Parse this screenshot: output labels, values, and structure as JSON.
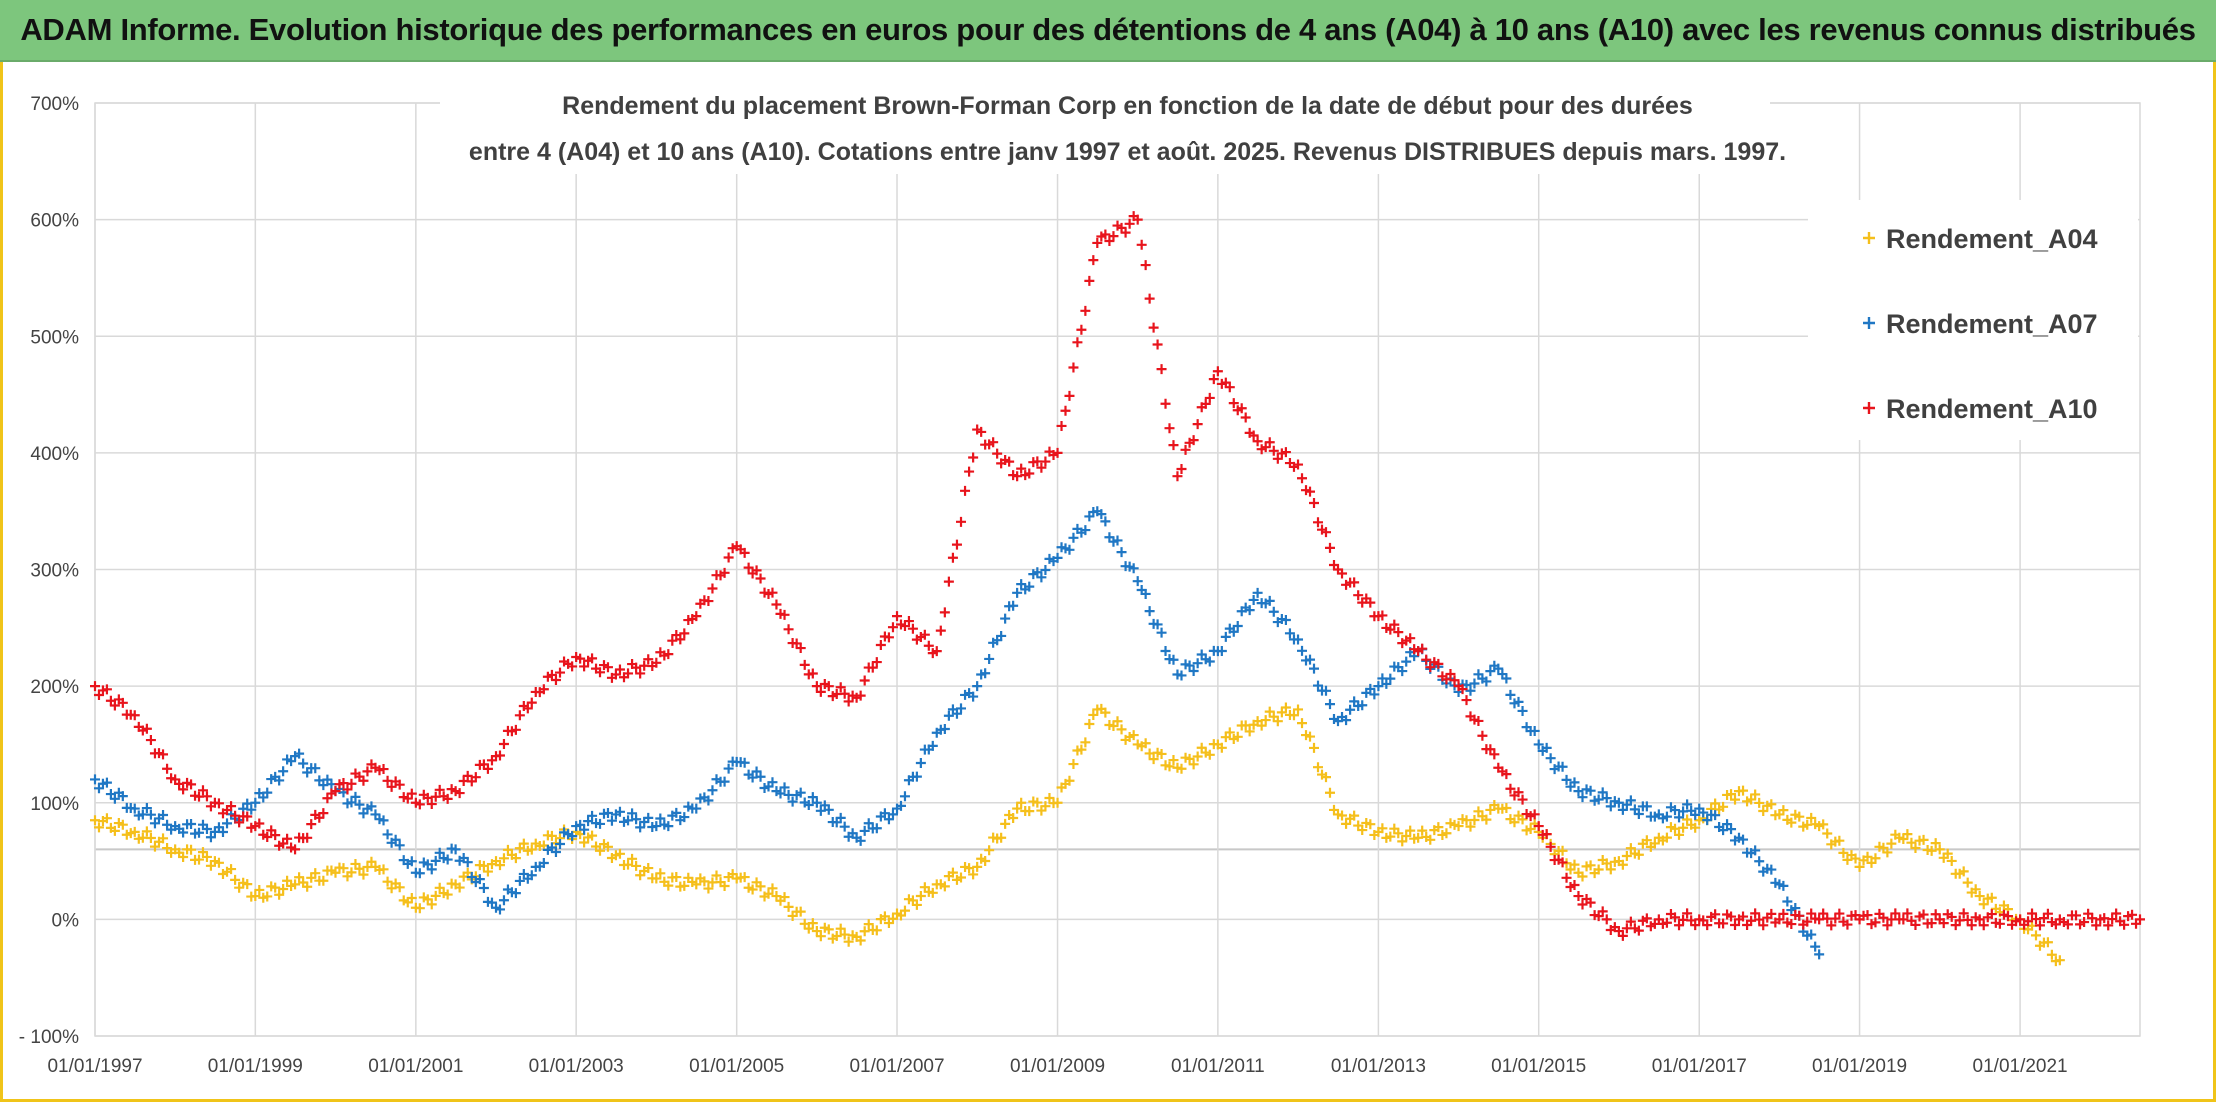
{
  "banner": {
    "title": "ADAM Informe. Evolution historique des performances en euros pour des détentions de 4 ans (A04) à 10 ans (A10) avec les revenus connus distribués"
  },
  "colors": {
    "banner_bg": "#7dc67d",
    "frame_border": "#f0c419",
    "a04": "#f5bf1b",
    "a07": "#1f77c4",
    "a10": "#e8141c"
  },
  "chart_data": {
    "type": "scatter",
    "title_line1": "Rendement du placement Brown-Forman Corp en fonction de la date de début pour des durées",
    "title_line2": "entre 4 (A04) et 10 ans (A10). Cotations entre janv 1997 et août. 2025. Revenus DISTRIBUES depuis mars. 1997.",
    "xlabel": "",
    "ylabel": "",
    "x_ticks": [
      "01/01/1997",
      "01/01/1999",
      "01/01/2001",
      "01/01/2003",
      "01/01/2005",
      "01/01/2007",
      "01/01/2009",
      "01/01/2011",
      "01/01/2013",
      "01/01/2015",
      "01/01/2017",
      "01/01/2019",
      "01/01/2021"
    ],
    "y_ticks": [
      "700%",
      "600%",
      "500%",
      "400%",
      "300%",
      "200%",
      "100%",
      "0%",
      "- 100%"
    ],
    "ylim": [
      -100,
      700
    ],
    "xlim": [
      "01/01/1997",
      "01/07/2022"
    ],
    "grid": true,
    "legend_position": "top-right",
    "marker": "+",
    "series": [
      {
        "name": "Rendement_A04",
        "x": [
          "1997-01",
          "1997-07",
          "1998-01",
          "1998-07",
          "1999-01",
          "1999-07",
          "2000-01",
          "2000-07",
          "2001-01",
          "2001-07",
          "2002-01",
          "2002-07",
          "2003-01",
          "2003-07",
          "2004-01",
          "2004-07",
          "2005-01",
          "2005-07",
          "2006-01",
          "2006-07",
          "2007-01",
          "2007-07",
          "2008-01",
          "2008-07",
          "2009-01",
          "2009-07",
          "2010-01",
          "2010-07",
          "2011-01",
          "2011-07",
          "2012-01",
          "2012-07",
          "2013-01",
          "2013-07",
          "2014-01",
          "2014-07",
          "2015-01",
          "2015-07",
          "2016-01",
          "2016-07",
          "2017-01",
          "2017-07",
          "2018-01",
          "2018-07",
          "2019-01",
          "2019-07",
          "2020-01",
          "2020-07",
          "2021-01",
          "2021-07"
        ],
        "values": [
          85,
          75,
          60,
          50,
          20,
          30,
          40,
          45,
          10,
          30,
          50,
          65,
          75,
          55,
          35,
          30,
          35,
          20,
          -10,
          -15,
          5,
          30,
          45,
          95,
          100,
          180,
          150,
          130,
          150,
          170,
          180,
          90,
          75,
          70,
          80,
          95,
          75,
          40,
          50,
          70,
          85,
          110,
          90,
          80,
          45,
          70,
          60,
          20,
          0,
          -35
        ]
      },
      {
        "name": "Rendement_A07",
        "x": [
          "1997-01",
          "1997-07",
          "1998-01",
          "1998-07",
          "1999-01",
          "1999-07",
          "2000-01",
          "2000-07",
          "2001-01",
          "2001-07",
          "2002-01",
          "2002-07",
          "2003-01",
          "2003-07",
          "2004-01",
          "2004-07",
          "2005-01",
          "2005-07",
          "2006-01",
          "2006-07",
          "2007-01",
          "2007-07",
          "2008-01",
          "2008-07",
          "2009-01",
          "2009-07",
          "2010-01",
          "2010-07",
          "2011-01",
          "2011-07",
          "2012-01",
          "2012-07",
          "2013-01",
          "2013-07",
          "2014-01",
          "2014-07",
          "2015-01",
          "2015-07",
          "2016-01",
          "2016-07",
          "2017-01",
          "2017-07",
          "2018-01",
          "2018-07"
        ],
        "values": [
          120,
          95,
          80,
          75,
          100,
          140,
          110,
          90,
          40,
          60,
          10,
          45,
          80,
          90,
          80,
          95,
          135,
          110,
          100,
          70,
          95,
          160,
          200,
          280,
          310,
          350,
          290,
          210,
          230,
          280,
          240,
          170,
          200,
          230,
          195,
          215,
          150,
          110,
          100,
          90,
          95,
          70,
          30,
          -30
        ]
      },
      {
        "name": "Rendement_A10",
        "x": [
          "1997-01",
          "1997-07",
          "1998-01",
          "1998-07",
          "1999-01",
          "1999-07",
          "2000-01",
          "2000-07",
          "2001-01",
          "2001-07",
          "2002-01",
          "2002-07",
          "2003-01",
          "2003-07",
          "2004-01",
          "2004-07",
          "2005-01",
          "2005-07",
          "2006-01",
          "2006-07",
          "2007-01",
          "2007-07",
          "2008-01",
          "2008-07",
          "2009-01",
          "2009-07",
          "2010-01",
          "2010-07",
          "2011-01",
          "2011-07",
          "2012-01",
          "2012-07",
          "2013-01",
          "2013-07",
          "2014-01",
          "2014-07",
          "2015-01",
          "2015-07",
          "2016-01",
          "2016-07",
          "2017-01",
          "2017-07",
          "2018-01",
          "2018-07",
          "2019-01",
          "2019-07",
          "2020-01",
          "2020-07",
          "2021-01",
          "2021-07",
          "2022-01",
          "2022-07"
        ],
        "values": [
          200,
          175,
          120,
          100,
          80,
          60,
          110,
          130,
          100,
          110,
          140,
          195,
          225,
          210,
          220,
          260,
          320,
          270,
          200,
          190,
          260,
          230,
          420,
          380,
          400,
          580,
          600,
          380,
          470,
          410,
          390,
          300,
          260,
          230,
          200,
          130,
          80,
          20,
          -10,
          0,
          0,
          0,
          0,
          0,
          0,
          0,
          0,
          0,
          0,
          0,
          0,
          0
        ]
      }
    ]
  }
}
